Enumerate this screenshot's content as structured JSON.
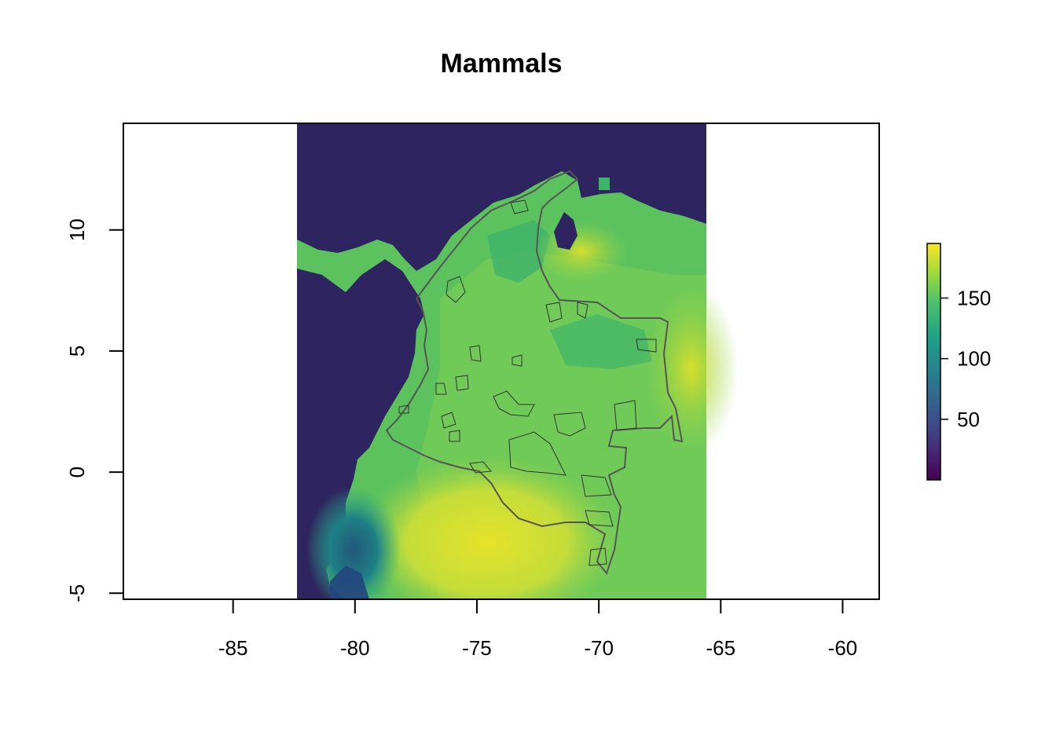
{
  "chart_data": {
    "type": "heatmap",
    "title": "Mammals",
    "xlabel": "",
    "ylabel": "",
    "xlim": [
      -89.5,
      -58.5
    ],
    "ylim": [
      -5.25,
      14.4
    ],
    "raster_extent": {
      "xmin": -82.4,
      "xmax": -65.55,
      "ymin": -5.25,
      "ymax": 14.4
    },
    "x_ticks": [
      -85,
      -80,
      -75,
      -70,
      -65,
      -60
    ],
    "x_tick_labels": [
      "-85",
      "-80",
      "-75",
      "-70",
      "-65",
      "-60"
    ],
    "y_ticks": [
      -5,
      0,
      5,
      10
    ],
    "y_tick_labels": [
      "-5",
      "0",
      "5",
      "10"
    ],
    "legend": {
      "position": "right",
      "palette": "viridis",
      "min": 0,
      "max": 195,
      "ticks": [
        50,
        100,
        150
      ],
      "tick_labels": [
        "50",
        "100",
        "150"
      ],
      "colors": [
        "#440154",
        "#3b528b",
        "#21908c",
        "#5dc863",
        "#fde725"
      ]
    },
    "colors": {
      "background_low": "#2e2460",
      "main_range": "#5cc25e",
      "high": "#d2e02c",
      "border": "#555555"
    }
  }
}
